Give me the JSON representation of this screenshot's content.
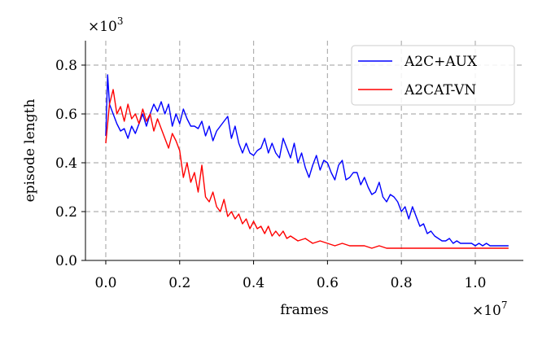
{
  "chart_data": {
    "type": "line",
    "xlabel": "frames",
    "ylabel": "episode length",
    "x_scale_label": "×10",
    "x_scale_exp": "7",
    "y_scale_label": "×10",
    "y_scale_exp": "3",
    "xlim": [
      -0.055,
      1.13
    ],
    "ylim": [
      0.0,
      0.9
    ],
    "x_ticks": [
      0.0,
      0.2,
      0.4,
      0.6,
      0.8,
      1.0
    ],
    "x_tick_labels": [
      "0.0",
      "0.2",
      "0.4",
      "0.6",
      "0.8",
      "1.0"
    ],
    "y_ticks": [
      0.0,
      0.2,
      0.4,
      0.6,
      0.8
    ],
    "y_tick_labels": [
      "0.0",
      "0.2",
      "0.4",
      "0.6",
      "0.8"
    ],
    "grid": true,
    "legend_position": "top-right",
    "series": [
      {
        "name": "A2C+AUX",
        "color": "#0000ff",
        "x": [
          0.0,
          0.005,
          0.01,
          0.02,
          0.03,
          0.04,
          0.05,
          0.06,
          0.07,
          0.08,
          0.09,
          0.1,
          0.11,
          0.12,
          0.13,
          0.14,
          0.15,
          0.16,
          0.17,
          0.18,
          0.19,
          0.2,
          0.21,
          0.22,
          0.23,
          0.24,
          0.25,
          0.26,
          0.27,
          0.28,
          0.29,
          0.3,
          0.31,
          0.32,
          0.33,
          0.34,
          0.35,
          0.36,
          0.37,
          0.38,
          0.39,
          0.4,
          0.41,
          0.42,
          0.43,
          0.44,
          0.45,
          0.46,
          0.47,
          0.48,
          0.49,
          0.5,
          0.51,
          0.52,
          0.53,
          0.54,
          0.55,
          0.56,
          0.57,
          0.58,
          0.59,
          0.6,
          0.61,
          0.62,
          0.63,
          0.64,
          0.65,
          0.66,
          0.67,
          0.68,
          0.69,
          0.7,
          0.71,
          0.72,
          0.73,
          0.74,
          0.75,
          0.76,
          0.77,
          0.78,
          0.79,
          0.8,
          0.81,
          0.82,
          0.83,
          0.84,
          0.85,
          0.86,
          0.87,
          0.88,
          0.89,
          0.9,
          0.91,
          0.92,
          0.93,
          0.94,
          0.95,
          0.96,
          0.97,
          0.98,
          0.99,
          1.0,
          1.01,
          1.02,
          1.03,
          1.04,
          1.05,
          1.06,
          1.07,
          1.08,
          1.09
        ],
        "y": [
          0.51,
          0.76,
          0.64,
          0.6,
          0.56,
          0.53,
          0.54,
          0.5,
          0.55,
          0.52,
          0.56,
          0.6,
          0.55,
          0.6,
          0.64,
          0.61,
          0.65,
          0.6,
          0.64,
          0.55,
          0.6,
          0.56,
          0.62,
          0.58,
          0.55,
          0.55,
          0.54,
          0.57,
          0.51,
          0.55,
          0.49,
          0.53,
          0.55,
          0.57,
          0.59,
          0.5,
          0.55,
          0.48,
          0.44,
          0.48,
          0.44,
          0.43,
          0.45,
          0.46,
          0.5,
          0.44,
          0.48,
          0.44,
          0.42,
          0.5,
          0.46,
          0.42,
          0.48,
          0.4,
          0.44,
          0.38,
          0.34,
          0.39,
          0.43,
          0.37,
          0.41,
          0.4,
          0.36,
          0.33,
          0.39,
          0.41,
          0.33,
          0.34,
          0.36,
          0.36,
          0.31,
          0.34,
          0.3,
          0.27,
          0.28,
          0.32,
          0.26,
          0.24,
          0.27,
          0.26,
          0.24,
          0.2,
          0.22,
          0.17,
          0.22,
          0.18,
          0.14,
          0.15,
          0.11,
          0.12,
          0.1,
          0.09,
          0.08,
          0.08,
          0.09,
          0.07,
          0.08,
          0.07,
          0.07,
          0.07,
          0.07,
          0.06,
          0.07,
          0.06,
          0.07,
          0.06,
          0.06,
          0.06,
          0.06,
          0.06,
          0.06
        ]
      },
      {
        "name": "A2CAT-VN",
        "color": "#ff0000",
        "x": [
          0.0,
          0.005,
          0.01,
          0.02,
          0.03,
          0.04,
          0.05,
          0.06,
          0.07,
          0.08,
          0.09,
          0.1,
          0.11,
          0.12,
          0.13,
          0.14,
          0.15,
          0.16,
          0.17,
          0.18,
          0.19,
          0.2,
          0.21,
          0.22,
          0.23,
          0.24,
          0.25,
          0.26,
          0.27,
          0.28,
          0.29,
          0.3,
          0.31,
          0.32,
          0.33,
          0.34,
          0.35,
          0.36,
          0.37,
          0.38,
          0.39,
          0.4,
          0.41,
          0.42,
          0.43,
          0.44,
          0.45,
          0.46,
          0.47,
          0.48,
          0.49,
          0.5,
          0.52,
          0.54,
          0.56,
          0.58,
          0.6,
          0.62,
          0.64,
          0.66,
          0.68,
          0.7,
          0.72,
          0.74,
          0.76,
          0.78,
          0.8,
          0.82,
          0.84,
          0.86,
          0.88,
          0.9,
          0.92,
          0.94,
          0.96,
          0.98,
          1.0,
          1.02,
          1.04,
          1.06,
          1.08,
          1.09
        ],
        "y": [
          0.48,
          0.56,
          0.64,
          0.7,
          0.6,
          0.63,
          0.57,
          0.64,
          0.58,
          0.6,
          0.56,
          0.62,
          0.57,
          0.6,
          0.53,
          0.58,
          0.54,
          0.5,
          0.46,
          0.52,
          0.49,
          0.45,
          0.34,
          0.4,
          0.32,
          0.36,
          0.28,
          0.39,
          0.26,
          0.24,
          0.28,
          0.22,
          0.2,
          0.25,
          0.18,
          0.2,
          0.17,
          0.19,
          0.15,
          0.17,
          0.13,
          0.16,
          0.13,
          0.14,
          0.11,
          0.14,
          0.1,
          0.12,
          0.1,
          0.12,
          0.09,
          0.1,
          0.08,
          0.09,
          0.07,
          0.08,
          0.07,
          0.06,
          0.07,
          0.06,
          0.06,
          0.06,
          0.05,
          0.06,
          0.05,
          0.05,
          0.05,
          0.05,
          0.05,
          0.05,
          0.05,
          0.05,
          0.05,
          0.05,
          0.05,
          0.05,
          0.05,
          0.05,
          0.05,
          0.05,
          0.05,
          0.05
        ]
      }
    ]
  }
}
